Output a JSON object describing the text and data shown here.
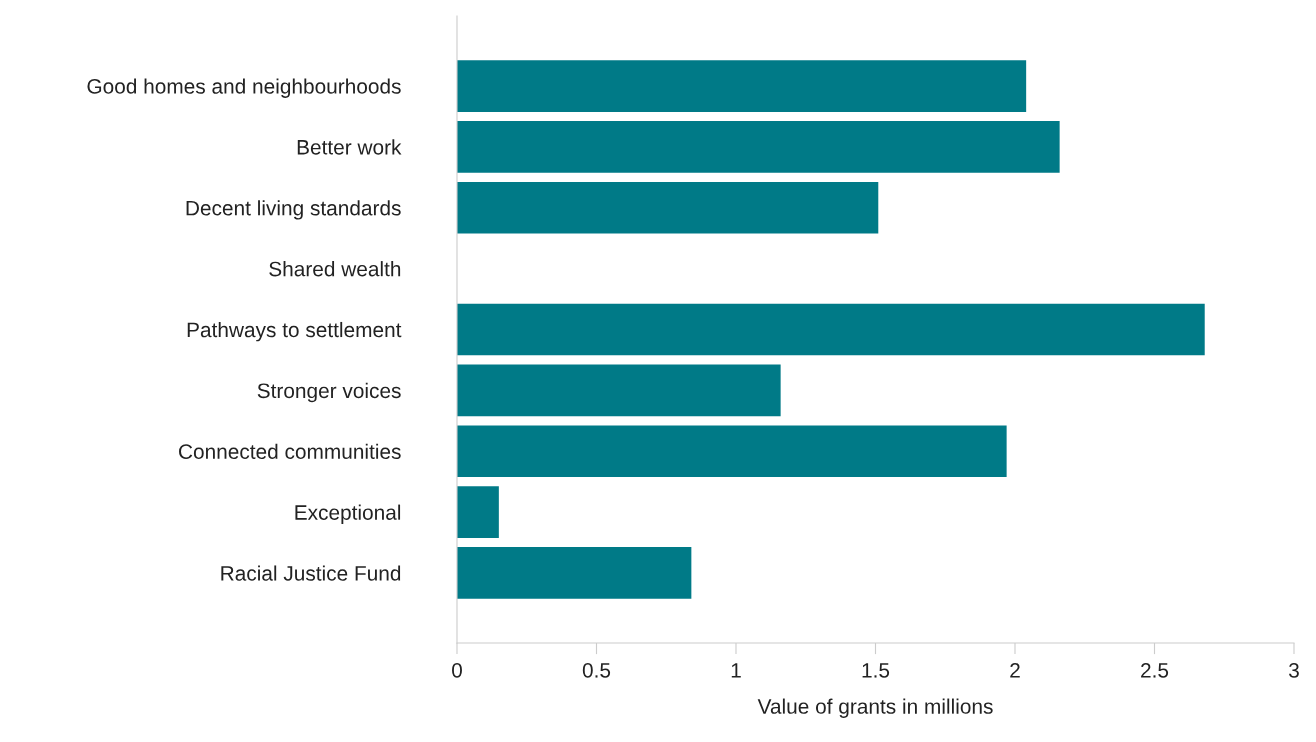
{
  "chart_data": {
    "type": "bar",
    "orientation": "horizontal",
    "xlabel": "Value of grants in millions",
    "categories": [
      "Good homes and neighbourhoods",
      "Better work",
      "Decent living standards",
      "Shared wealth",
      "Pathways to settlement",
      "Stronger voices",
      "Connected communities",
      "Exceptional",
      "Racial Justice Fund"
    ],
    "values": [
      2.04,
      2.16,
      1.51,
      null,
      2.68,
      1.16,
      1.97,
      0.15,
      0.84
    ],
    "color": "#007a87",
    "xlim": [
      0,
      3
    ],
    "xticks": [
      0,
      0.5,
      1,
      1.5,
      2,
      2.5,
      3
    ],
    "grid": false,
    "legend": false
  }
}
